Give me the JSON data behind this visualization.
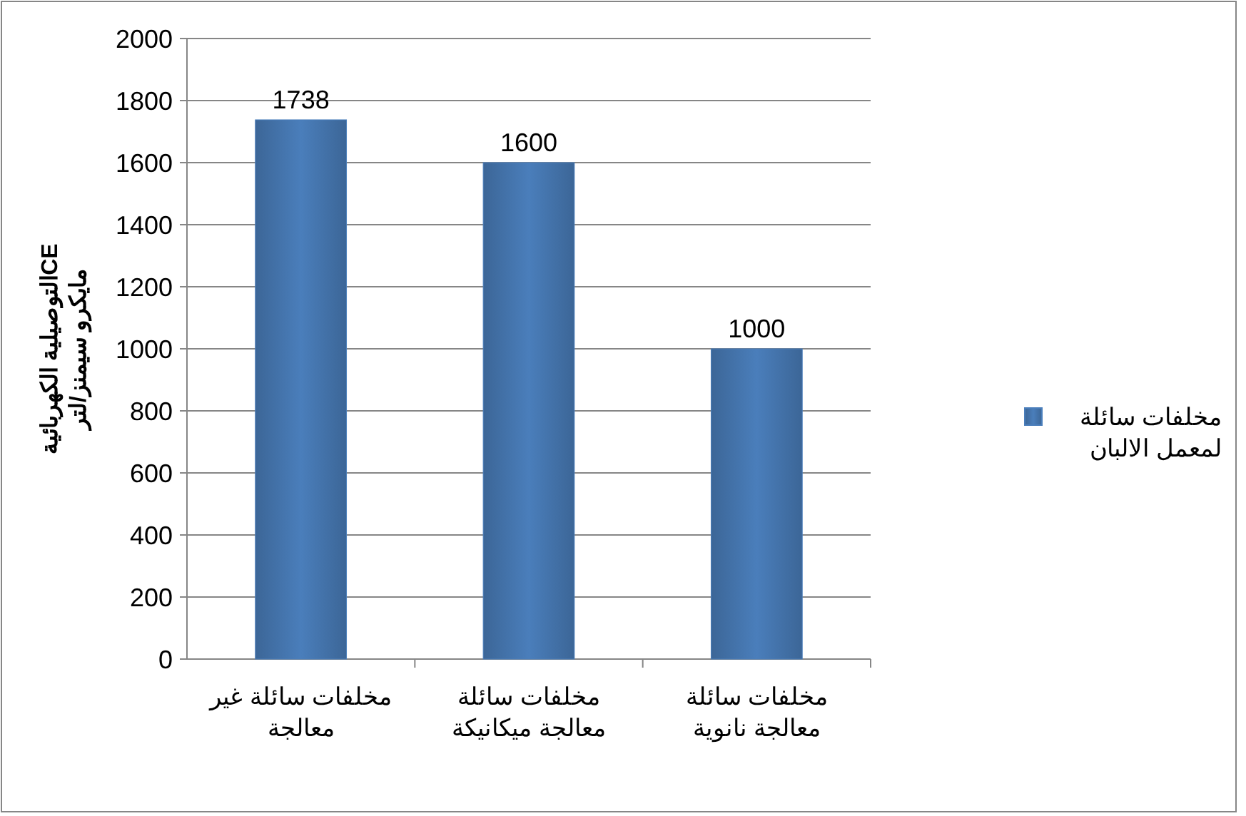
{
  "chart_data": {
    "type": "bar",
    "ylabel": "التوصيلية الكهربائيةCE مايكرو سيمنز/لتر",
    "categories": [
      "مخلفات سائلة غير معالجة",
      "مخلفات سائلة معالجة ميكانيكة",
      "مخلفات سائلة معالجة نانوية"
    ],
    "series": [
      {
        "name": "مخلفات سائلة لمعمل الالبان",
        "color": "#4a7ebb",
        "values": [
          1738,
          1600,
          1000
        ]
      }
    ],
    "ylim": [
      0,
      2000
    ],
    "yticks": [
      0,
      200,
      400,
      600,
      800,
      1000,
      1200,
      1400,
      1600,
      1800,
      2000
    ],
    "grid": "y",
    "legend": "right",
    "data_labels": true
  }
}
